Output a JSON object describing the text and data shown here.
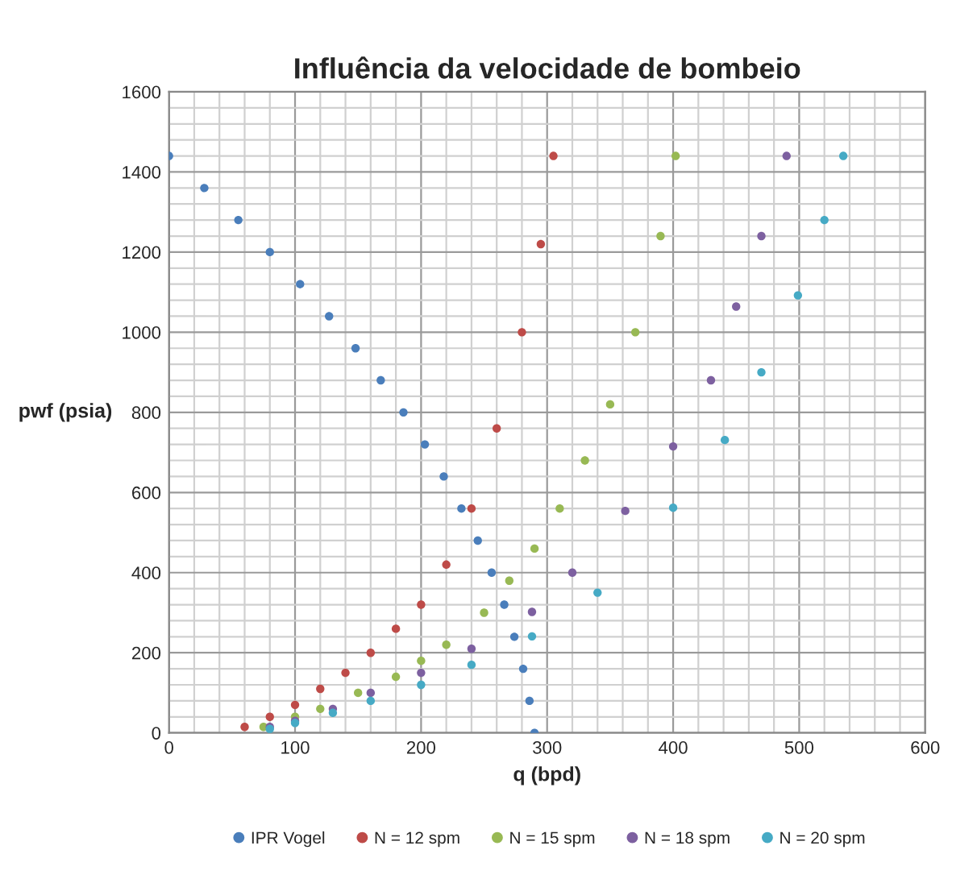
{
  "chart_data": {
    "type": "scatter",
    "title": "Influência da velocidade de bombeio",
    "xlabel": "q (bpd)",
    "ylabel": "pwf (psia)",
    "xlim": [
      0,
      600
    ],
    "ylim": [
      0,
      1600
    ],
    "xticks": [
      0,
      {
        "value": 20,
        "label": null
      },
      {
        "value": 40,
        "label": null
      },
      {
        "value": 60,
        "label": null
      },
      {
        "value": 80,
        "label": null
      },
      100,
      {
        "value": 120,
        "label": null
      },
      {
        "value": 140,
        "label": null
      },
      {
        "value": 160,
        "label": null
      },
      {
        "value": 180,
        "label": null
      },
      200,
      {
        "value": 220,
        "label": null
      },
      {
        "value": 240,
        "label": null
      },
      {
        "value": 260,
        "label": null
      },
      {
        "value": 280,
        "label": null
      },
      300,
      {
        "value": 320,
        "label": null
      },
      {
        "value": 340,
        "label": null
      },
      {
        "value": 360,
        "label": null
      },
      {
        "value": 380,
        "label": null
      },
      400,
      {
        "value": 420,
        "label": null
      },
      {
        "value": 440,
        "label": null
      },
      {
        "value": 460,
        "label": null
      },
      {
        "value": 480,
        "label": null
      },
      500,
      {
        "value": 520,
        "label": null
      },
      {
        "value": 540,
        "label": null
      },
      {
        "value": 560,
        "label": null
      },
      {
        "value": 580,
        "label": null
      },
      600
    ],
    "yticks": [
      0,
      {
        "value": 40,
        "label": null
      },
      {
        "value": 80,
        "label": null
      },
      {
        "value": 120,
        "label": null
      },
      {
        "value": 160,
        "label": null
      },
      200,
      {
        "value": 240,
        "label": null
      },
      {
        "value": 280,
        "label": null
      },
      {
        "value": 320,
        "label": null
      },
      {
        "value": 360,
        "label": null
      },
      400,
      {
        "value": 440,
        "label": null
      },
      {
        "value": 480,
        "label": null
      },
      {
        "value": 520,
        "label": null
      },
      {
        "value": 560,
        "label": null
      },
      600,
      {
        "value": 640,
        "label": null
      },
      {
        "value": 680,
        "label": null
      },
      {
        "value": 720,
        "label": null
      },
      {
        "value": 760,
        "label": null
      },
      800,
      {
        "value": 840,
        "label": null
      },
      {
        "value": 880,
        "label": null
      },
      {
        "value": 920,
        "label": null
      },
      {
        "value": 960,
        "label": null
      },
      1000,
      {
        "value": 1040,
        "label": null
      },
      {
        "value": 1080,
        "label": null
      },
      {
        "value": 1120,
        "label": null
      },
      {
        "value": 1160,
        "label": null
      },
      1200,
      {
        "value": 1240,
        "label": null
      },
      {
        "value": 1280,
        "label": null
      },
      {
        "value": 1320,
        "label": null
      },
      {
        "value": 1360,
        "label": null
      },
      1400,
      {
        "value": 1440,
        "label": null
      },
      {
        "value": 1480,
        "label": null
      },
      {
        "value": 1520,
        "label": null
      },
      {
        "value": 1560,
        "label": null
      },
      1600
    ],
    "grid": true,
    "legend": "bottom",
    "marker": "circle",
    "series": [
      {
        "name": "IPR Vogel",
        "color": "#4a7ebb",
        "x": [
          0,
          28,
          55,
          80,
          104,
          127,
          148,
          168,
          186,
          203,
          218,
          232,
          245,
          256,
          266,
          274,
          281,
          286,
          290
        ],
        "values": [
          1440,
          1360,
          1280,
          1200,
          1120,
          1040,
          960,
          880,
          800,
          720,
          640,
          560,
          480,
          400,
          320,
          240,
          160,
          80,
          0
        ]
      },
      {
        "name": "N = 12 spm",
        "color": "#be4b48",
        "x": [
          60,
          80,
          100,
          120,
          140,
          160,
          180,
          200,
          220,
          240,
          260,
          280,
          295,
          305
        ],
        "values": [
          15,
          40,
          70,
          110,
          150,
          200,
          260,
          320,
          420,
          560,
          760,
          1000,
          1220,
          1440
        ]
      },
      {
        "name": "N = 15 spm",
        "color": "#98b954",
        "x": [
          75,
          100,
          120,
          150,
          180,
          200,
          220,
          250,
          270,
          290,
          310,
          330,
          350,
          370,
          390,
          402
        ],
        "values": [
          15,
          40,
          60,
          100,
          140,
          180,
          220,
          300,
          380,
          460,
          560,
          680,
          820,
          1000,
          1240,
          1440
        ]
      },
      {
        "name": "N = 18 spm",
        "color": "#7d60a0",
        "x": [
          80,
          100,
          130,
          160,
          200,
          240,
          288,
          320,
          362,
          400,
          430,
          450,
          470,
          490
        ],
        "values": [
          15,
          30,
          60,
          100,
          150,
          210,
          302,
          400,
          554,
          715,
          880,
          1064,
          1240,
          1440
        ]
      },
      {
        "name": "N = 20 spm",
        "color": "#46aac5",
        "x": [
          80,
          100,
          130,
          160,
          200,
          240,
          288,
          340,
          400,
          441,
          470,
          499,
          520,
          535
        ],
        "values": [
          10,
          25,
          50,
          80,
          120,
          170,
          241,
          350,
          562,
          731,
          900,
          1092,
          1280,
          1440
        ]
      }
    ]
  }
}
